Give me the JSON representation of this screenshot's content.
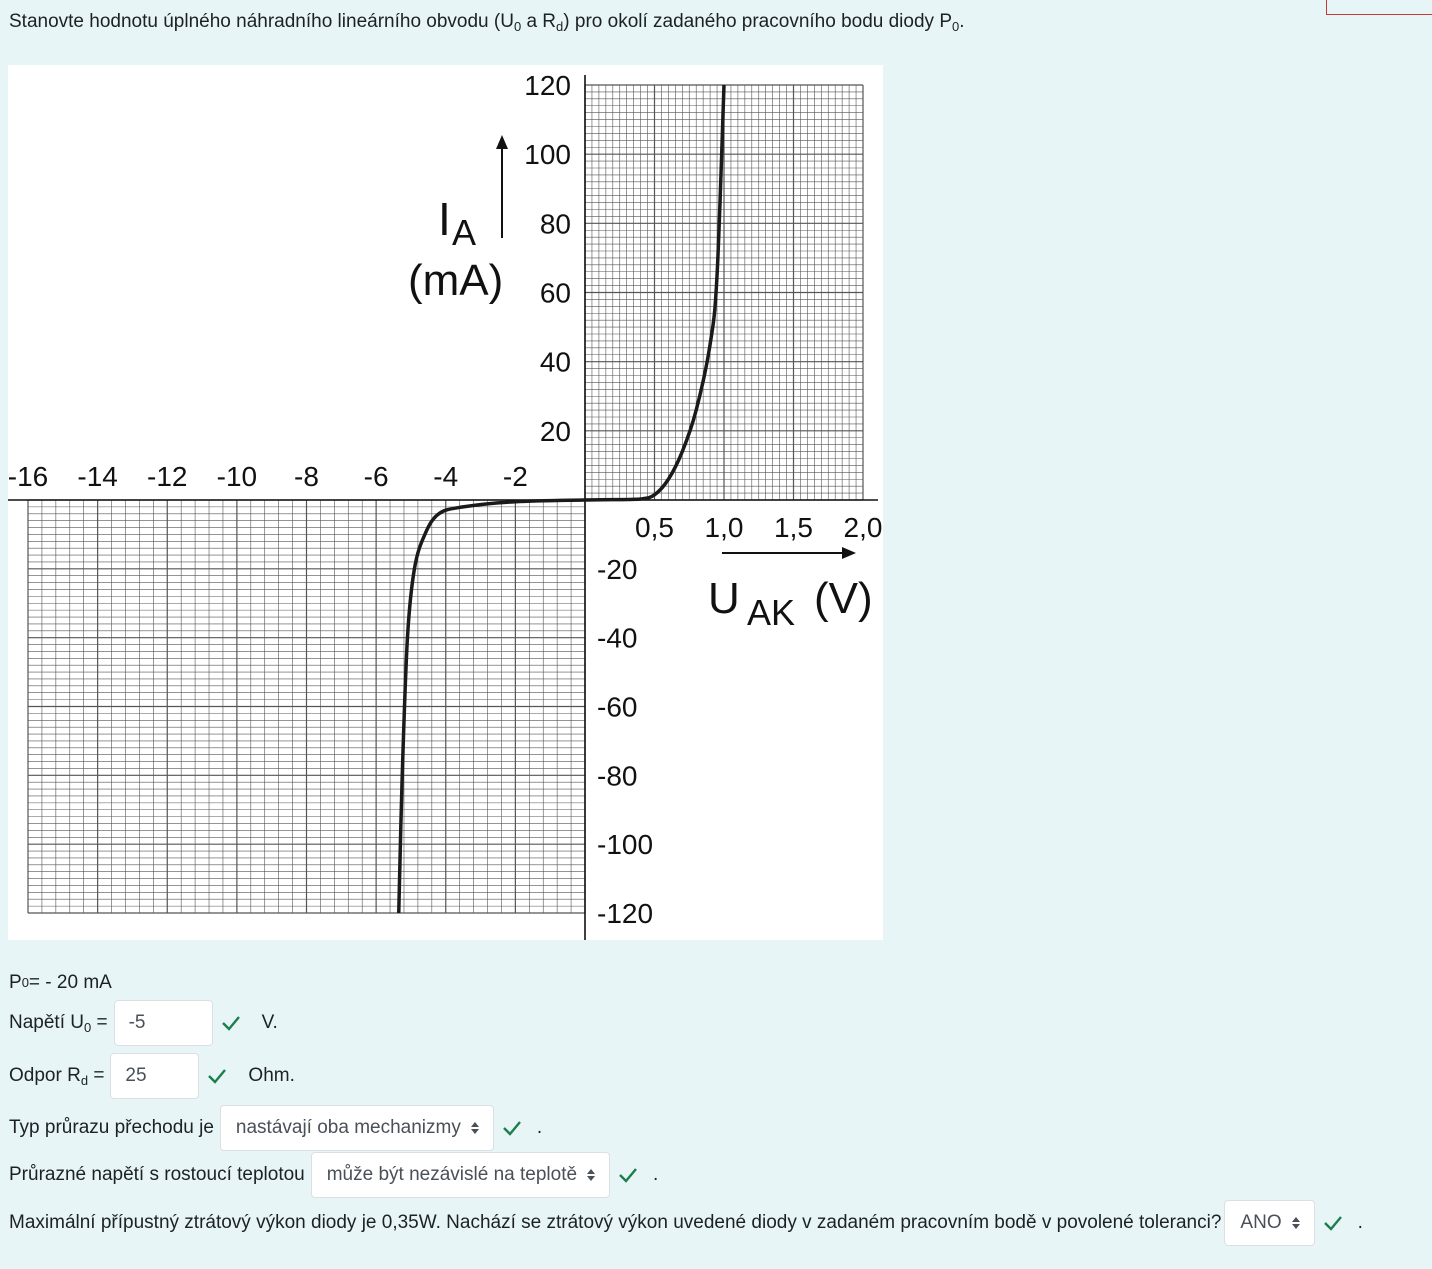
{
  "question": {
    "text_before": "Stanovte hodnotu úplného náhradního lineárního obvodu (U",
    "sub1": "0",
    "text_mid1": " a R",
    "sub2": "d",
    "text_mid2": ") pro okolí zadaného pracovního bodu diody P",
    "sub3": "0",
    "text_end": "."
  },
  "chart_data": {
    "type": "line",
    "title": "",
    "ylabel_main": "I",
    "ylabel_sub": "A",
    "ylabel_unit": "(mA)",
    "xlabel_main": "U",
    "xlabel_sub": "AK",
    "xlabel_unit": "(V)",
    "x_pos_ticks": [
      "0,5",
      "1,0",
      "1,5",
      "2,0"
    ],
    "x_neg_ticks": [
      "-16",
      "-14",
      "-12",
      "-10",
      "-8",
      "-6",
      "-4",
      "-2"
    ],
    "y_pos_ticks": [
      "120",
      "100",
      "80",
      "60",
      "40",
      "20"
    ],
    "y_neg_ticks": [
      "-20",
      "-40",
      "-60",
      "-80",
      "-100",
      "-120"
    ],
    "x_positive_range": [
      0,
      2.0
    ],
    "x_negative_range": [
      -16,
      0
    ],
    "ylim": [
      -120,
      120
    ],
    "grid": true,
    "series": [
      {
        "forward": [
          [
            0,
            0
          ],
          [
            0.2,
            0.1
          ],
          [
            0.4,
            0.3
          ],
          [
            0.5,
            1.5
          ],
          [
            0.6,
            6
          ],
          [
            0.7,
            14
          ],
          [
            0.8,
            26
          ],
          [
            0.9,
            45
          ],
          [
            0.95,
            65
          ],
          [
            1.0,
            120
          ]
        ],
        "reverse": [
          [
            0,
            0
          ],
          [
            -2,
            -0.5
          ],
          [
            -3.5,
            -2
          ],
          [
            -4.2,
            -4
          ],
          [
            -4.6,
            -10
          ],
          [
            -4.9,
            -20
          ],
          [
            -5.1,
            -40
          ],
          [
            -5.25,
            -80
          ],
          [
            -5.35,
            -120
          ]
        ]
      }
    ]
  },
  "p0": {
    "label": "P",
    "sub": "0",
    "value": "= - 20 mA"
  },
  "voltage": {
    "label": "Napětí U",
    "sub": "0",
    "eq": " =",
    "value": "-5",
    "unit": "V."
  },
  "resistance": {
    "label": "Odpor R",
    "sub": "d",
    "eq": " =",
    "value": "25",
    "unit": "Ohm."
  },
  "breakdown_type": {
    "label": "Typ průrazu přechodu je",
    "selected": "nastávají oba mechanizmy",
    "end": "."
  },
  "breakdown_temp": {
    "label": "Průrazné napětí s rostoucí teplotou",
    "selected": "může být nezávislé na teplotě",
    "end": "."
  },
  "power": {
    "label": "Maximální přípustný ztrátový výkon diody je 0,35W. Nachází se ztrátový výkon uvedené diody v zadaném pracovním bodě v povolené toleranci?",
    "selected": "ANO",
    "end": "."
  },
  "colors": {
    "background": "#e7f5f6",
    "check": "#1b7e4d",
    "curve": "#1a1a1a"
  }
}
